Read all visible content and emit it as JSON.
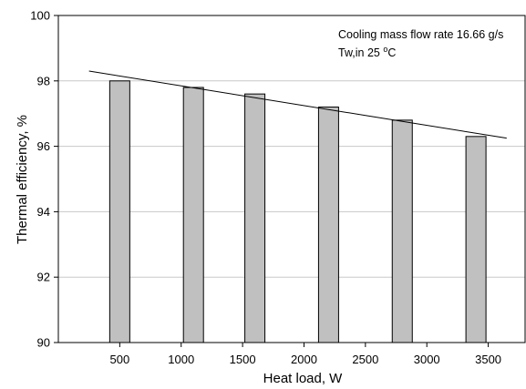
{
  "chart_data": {
    "type": "bar",
    "x": [
      500,
      1100,
      1600,
      2200,
      2800,
      3400
    ],
    "values": [
      98.0,
      97.8,
      97.6,
      97.2,
      96.8,
      96.3
    ],
    "xlabel": "Heat load, W",
    "ylabel": "Thermal efficiency, %",
    "xlim": [
      0,
      3800
    ],
    "ylim": [
      90,
      100
    ],
    "xticks": [
      "500",
      "1000",
      "1500",
      "2000",
      "2500",
      "3000",
      "3500"
    ],
    "xtick_values": [
      500,
      1000,
      1500,
      2000,
      2500,
      3000,
      3500
    ],
    "yticks": [
      "90",
      "92",
      "94",
      "96",
      "98",
      "100"
    ],
    "ytick_values": [
      90,
      92,
      94,
      96,
      98,
      100
    ],
    "grid": "horizontal",
    "bar_color": "#c0c0c0",
    "trendline": {
      "x": [
        250,
        3650
      ],
      "y": [
        98.3,
        96.25
      ]
    },
    "annotations": {
      "line1": "Cooling mass flow rate 16.66 g/s",
      "line2_prefix": "Tw,in 25 ",
      "line2_degree": "o",
      "line2_unit": "C"
    }
  }
}
